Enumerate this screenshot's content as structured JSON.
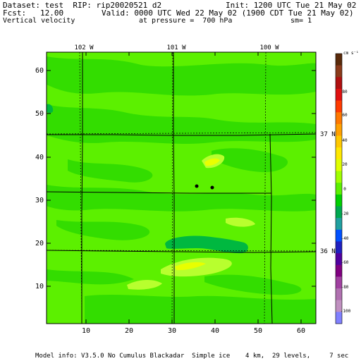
{
  "header": {
    "dataset": "Dataset: test  RIP: rip20020521 d2",
    "init": "Init: 1200 UTC Tue 21 May 02",
    "fcst": "Fcst:   12.00",
    "valid": "Valid: 0000 UTC Wed 22 May 02 (1900 CDT Tue 21 May 02)",
    "field": "Vertical velocity",
    "pressure": "at pressure =  700 hPa",
    "smoothing": "sm= 1"
  },
  "map": {
    "x_ticks": [
      "10",
      "20",
      "30",
      "40",
      "50",
      "60"
    ],
    "y_ticks": [
      "10",
      "20",
      "30",
      "40",
      "50",
      "60"
    ],
    "longitude_labels": [
      "102 W",
      "101 W",
      "100 W"
    ],
    "latitude_labels": [
      "37 N",
      "36 N"
    ],
    "markers": 2
  },
  "colorbar": {
    "units": "cm s⁻¹",
    "labels": [
      "80",
      "60",
      "40",
      "20",
      "0",
      "-20",
      "-40",
      "-60",
      "-80",
      "-100"
    ],
    "colors": [
      "#5a2a0a",
      "#8b3a1a",
      "#b01010",
      "#e01010",
      "#ff3a00",
      "#ff7800",
      "#ffa000",
      "#ffc800",
      "#ffe800",
      "#e0ff00",
      "#a0ff00",
      "#5cf000",
      "#00d000",
      "#00a850",
      "#20a0a0",
      "#0050ff",
      "#2020c0",
      "#5000a0",
      "#800080",
      "#a040a0",
      "#b070b0",
      "#c090c0",
      "#8080ff"
    ]
  },
  "footer": {
    "model_info": "Model info: V3.5.0 No Cumulus Blackadar  Simple ice    4 km,  29 levels,     7 sec"
  }
}
